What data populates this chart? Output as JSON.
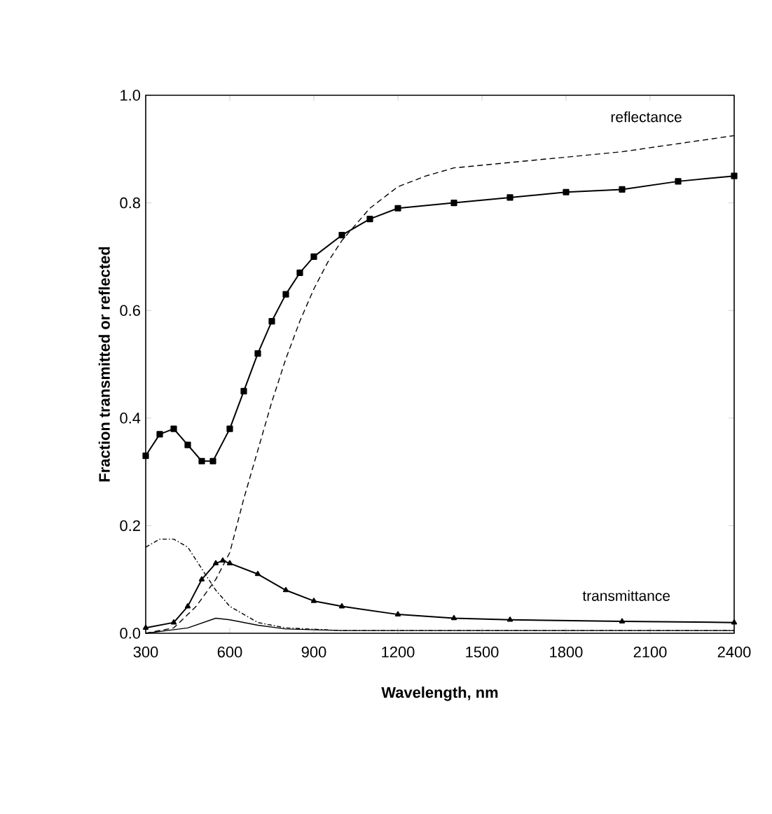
{
  "chart_data": {
    "type": "line",
    "xlabel": "Wavelength, nm",
    "ylabel": "Fraction transmitted or reflected",
    "xlim": [
      300,
      2400
    ],
    "ylim": [
      0,
      1
    ],
    "xticks": [
      300,
      600,
      900,
      1200,
      1500,
      1800,
      2100,
      2400
    ],
    "yticks": [
      {
        "value": 0,
        "label": "0.0"
      },
      0.2,
      0.4,
      0.6,
      0.8,
      {
        "value": 1,
        "label": "1.0"
      }
    ],
    "grid": false,
    "annotations": [
      "reflectance",
      "transmittance"
    ],
    "series": [
      {
        "color": "#000000",
        "marker": "square",
        "line_style": "solid",
        "x": [
          300,
          350,
          400,
          450,
          500,
          540,
          600,
          650,
          700,
          750,
          800,
          850,
          900,
          1000,
          1100,
          1200,
          1400,
          1600,
          1800,
          2000,
          2200,
          2400
        ],
        "values": [
          0.33,
          0.37,
          0.38,
          0.35,
          0.32,
          0.32,
          0.38,
          0.45,
          0.52,
          0.58,
          0.63,
          0.67,
          0.7,
          0.74,
          0.77,
          0.79,
          0.8,
          0.81,
          0.82,
          0.825,
          0.84,
          0.85
        ]
      },
      {
        "color": "#000000",
        "marker": "none",
        "line_style": "dashed",
        "x": [
          300,
          400,
          480,
          550,
          600,
          650,
          700,
          750,
          800,
          850,
          900,
          950,
          1000,
          1100,
          1200,
          1300,
          1400,
          1600,
          1800,
          2000,
          2200,
          2400
        ],
        "values": [
          0.0,
          0.01,
          0.05,
          0.1,
          0.15,
          0.25,
          0.34,
          0.43,
          0.51,
          0.58,
          0.64,
          0.69,
          0.73,
          0.79,
          0.83,
          0.85,
          0.865,
          0.875,
          0.885,
          0.895,
          0.91,
          0.925
        ]
      },
      {
        "color": "#000000",
        "marker": "none",
        "line_style": "dotted",
        "x": [
          300,
          350,
          400,
          450,
          500,
          550,
          600,
          700,
          800,
          1000,
          1500,
          2000,
          2400
        ],
        "values": [
          0.16,
          0.175,
          0.175,
          0.16,
          0.12,
          0.08,
          0.05,
          0.02,
          0.01,
          0.005,
          0.005,
          0.005,
          0.005
        ]
      },
      {
        "color": "#000000",
        "marker": "triangle",
        "line_style": "solid",
        "x": [
          300,
          400,
          450,
          500,
          550,
          575,
          600,
          700,
          800,
          900,
          1000,
          1200,
          1400,
          1600,
          2000,
          2400
        ],
        "values": [
          0.01,
          0.02,
          0.05,
          0.1,
          0.13,
          0.135,
          0.13,
          0.11,
          0.08,
          0.06,
          0.05,
          0.035,
          0.028,
          0.025,
          0.022,
          0.02
        ]
      },
      {
        "color": "#000000",
        "marker": "none",
        "line_style": "solid",
        "x": [
          300,
          450,
          550,
          600,
          700,
          800,
          1000,
          2400
        ],
        "values": [
          0.0,
          0.01,
          0.028,
          0.025,
          0.015,
          0.008,
          0.005,
          0.005
        ]
      }
    ]
  }
}
